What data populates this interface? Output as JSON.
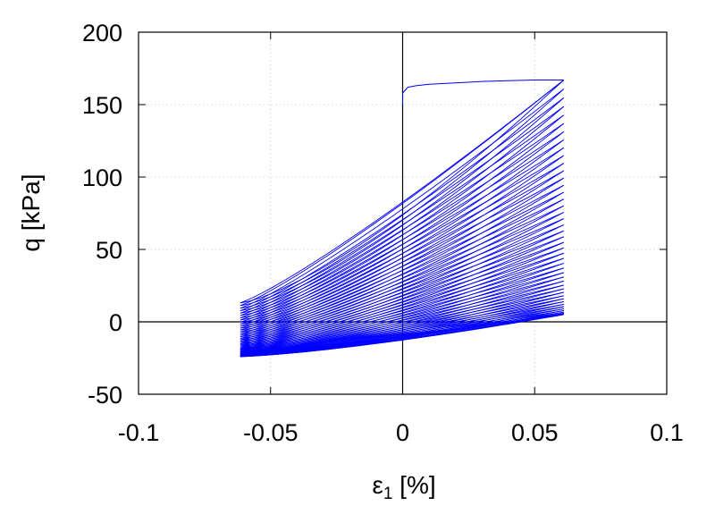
{
  "chart_data": {
    "type": "line",
    "title": "",
    "xlabel": "ε",
    "xlabel_sub": "1",
    "xlabel_unit": " [%]",
    "ylabel": "q [kPa]",
    "xlim": [
      -0.1,
      0.1
    ],
    "ylim": [
      -50,
      200
    ],
    "xticks": [
      -0.1,
      -0.05,
      0,
      0.05,
      0.1
    ],
    "xtick_labels": [
      "-0.1",
      "-0.05",
      "0",
      "0.05",
      "0.1"
    ],
    "yticks": [
      -50,
      0,
      50,
      100,
      150,
      200
    ],
    "ytick_labels": [
      "-50",
      "0",
      "50",
      "100",
      "150",
      "200"
    ],
    "grid": true,
    "zero_lines": true,
    "series_color": "#0000ff",
    "series": [
      {
        "description": "cyclic loading loops, amplitude decaying",
        "x": [
          0.0,
          0.0,
          0.002,
          0.005,
          0.01,
          0.02,
          0.03,
          0.04,
          0.05,
          0.061
        ],
        "y": [
          150,
          158,
          162,
          163,
          164,
          165,
          166,
          166.5,
          167,
          167
        ]
      }
    ],
    "loop_envelope": {
      "strain_min": -0.0615,
      "strain_max": 0.061,
      "first_unload_end_q": 13,
      "q_max_at_max_strain_start": 167,
      "q_max_at_max_strain_end": 5,
      "q_min_at_min_strain_start": 13,
      "q_min_at_min_strain_end": -24,
      "loop_count": 45
    }
  }
}
